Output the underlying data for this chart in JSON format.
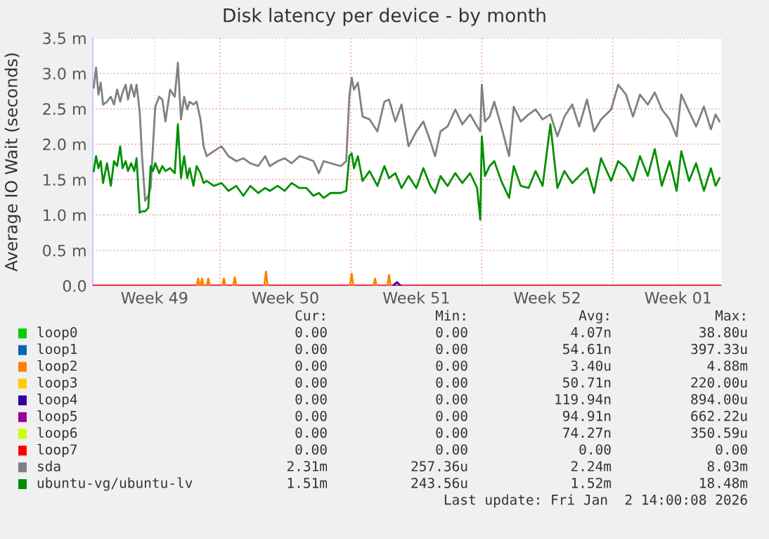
{
  "chart_data": {
    "type": "line",
    "title": "Disk latency per device - by month",
    "ylabel": "Average IO Wait (seconds)",
    "xlim": [
      "2025-12-01T04:48",
      "2026-01-03T19:12"
    ],
    "xticks": [
      {
        "value": "2025-12-04T12:00",
        "label": "Week 49"
      },
      {
        "value": "2025-12-08T00:00",
        "label": null
      },
      {
        "value": "2025-12-11T12:00",
        "label": "Week 50"
      },
      {
        "value": "2025-12-15T00:00",
        "label": null
      },
      {
        "value": "2025-12-18T12:00",
        "label": "Week 51"
      },
      {
        "value": "2025-12-22T00:00",
        "label": null
      },
      {
        "value": "2025-12-25T12:00",
        "label": "Week 52"
      },
      {
        "value": "2025-12-29T00:00",
        "label": null
      },
      {
        "value": "2026-01-01T12:00",
        "label": "Week 01"
      }
    ],
    "ylim": [
      0,
      3.5
    ],
    "yticks": [
      {
        "value": 0,
        "label": "0.0"
      },
      {
        "value": 0.5,
        "label": "0.5 m"
      },
      {
        "value": 1.0,
        "label": "1.0 m"
      },
      {
        "value": 1.5,
        "label": "1.5 m"
      },
      {
        "value": 2.0,
        "label": "2.0 m"
      },
      {
        "value": 2.5,
        "label": "2.5 m"
      },
      {
        "value": 3.0,
        "label": "3.0 m"
      },
      {
        "value": 3.5,
        "label": "3.5 m"
      }
    ],
    "grid": true,
    "legend": "bottom",
    "marker": "none",
    "line_style": "solid",
    "series": [
      {
        "name": "loop0",
        "color": "#00cc00"
      },
      {
        "name": "loop1",
        "color": "#0066b3"
      },
      {
        "name": "loop2",
        "color": "#ff8000",
        "x": [
          "2025-12-06T18:00",
          "2025-12-06T20:00",
          "2025-12-06T22:00",
          null,
          "2025-12-06T23:00",
          "2025-12-07T01:00",
          "2025-12-07T03:00",
          null,
          "2025-12-07T07:00",
          "2025-12-07T09:00",
          "2025-12-07T11:00",
          null,
          "2025-12-08T03:00",
          "2025-12-08T05:00",
          "2025-12-08T07:00",
          null,
          "2025-12-08T17:00",
          "2025-12-08T19:00",
          "2025-12-08T21:00",
          null,
          "2025-12-10T09:00",
          "2025-12-10T11:00",
          "2025-12-10T13:00",
          null,
          "2025-12-14T23:00",
          "2025-12-15T01:00",
          "2025-12-15T03:00",
          null,
          "2025-12-16T05:00",
          "2025-12-16T07:00",
          "2025-12-16T09:00",
          null,
          "2025-12-16T23:00",
          "2025-12-17T01:00",
          "2025-12-17T03:00"
        ],
        "values": [
          0,
          0.1,
          0,
          null,
          0,
          0.1,
          0,
          null,
          0,
          0.1,
          0,
          null,
          0,
          0.1,
          0,
          null,
          0,
          0.12,
          0,
          null,
          0,
          0.2,
          0,
          null,
          0,
          0.17,
          0,
          null,
          0,
          0.1,
          0,
          null,
          0,
          0.15,
          0
        ]
      },
      {
        "name": "loop3",
        "color": "#ffcc00"
      },
      {
        "name": "loop4",
        "color": "#330099",
        "x": [
          "2025-12-17T06:00",
          "2025-12-17T11:00",
          "2025-12-17T16:00"
        ],
        "values": [
          0,
          0.05,
          0
        ]
      },
      {
        "name": "loop5",
        "color": "#990099"
      },
      {
        "name": "loop6",
        "color": "#ccff00"
      },
      {
        "name": "loop7",
        "color": "#ff0000",
        "x": [
          "2025-12-01T04:48",
          "2026-01-03T19:12"
        ],
        "values": [
          0,
          0
        ]
      },
      {
        "name": "sda",
        "color": "#808080",
        "x": [
          "2025-12-01T06:00",
          "2025-12-01T09:00",
          "2025-12-01T12:00",
          "2025-12-01T15:00",
          "2025-12-01T18:00",
          "2025-12-01T23:00",
          "2025-12-02T04:00",
          "2025-12-02T08:00",
          "2025-12-02T12:00",
          "2025-12-02T16:00",
          "2025-12-02T19:00",
          "2025-12-02T23:00",
          "2025-12-03T02:00",
          "2025-12-03T06:00",
          "2025-12-03T10:00",
          "2025-12-03T13:00",
          "2025-12-03T17:00",
          "2025-12-03T20:00",
          "2025-12-04T00:00",
          "2025-12-04T04:00",
          "2025-12-04T07:00",
          "2025-12-04T10:00",
          "2025-12-04T13:00",
          "2025-12-04T18:00",
          "2025-12-04T22:00",
          "2025-12-05T02:00",
          "2025-12-05T08:00",
          "2025-12-05T14:00",
          "2025-12-05T18:00",
          "2025-12-05T22:00",
          "2025-12-06T02:00",
          "2025-12-06T06:00",
          "2025-12-06T09:00",
          "2025-12-06T14:00",
          "2025-12-06T18:00",
          "2025-12-06T23:00",
          "2025-12-07T03:00",
          "2025-12-07T07:00",
          "2025-12-07T16:00",
          "2025-12-08T02:00",
          "2025-12-08T11:00",
          "2025-12-08T21:00",
          "2025-12-09T06:00",
          "2025-12-09T15:00",
          "2025-12-10T01:00",
          "2025-12-10T10:00",
          "2025-12-10T16:00",
          "2025-12-11T02:00",
          "2025-12-11T11:00",
          "2025-12-11T20:00",
          "2025-12-12T06:00",
          "2025-12-12T15:00",
          "2025-12-13T00:00",
          "2025-12-13T07:00",
          "2025-12-13T13:00",
          "2025-12-13T22:00",
          "2025-12-14T11:00",
          "2025-12-14T18:00",
          "2025-12-14T22:00",
          "2025-12-15T01:00",
          "2025-12-15T04:00",
          "2025-12-15T09:00",
          "2025-12-15T15:00",
          "2025-12-16T00:00",
          "2025-12-16T10:00",
          "2025-12-16T19:00",
          "2025-12-17T01:00",
          "2025-12-17T09:00",
          "2025-12-17T17:00",
          "2025-12-18T02:00",
          "2025-12-18T12:00",
          "2025-12-18T21:00",
          "2025-12-19T06:00",
          "2025-12-19T12:00",
          "2025-12-19T19:00",
          "2025-12-20T04:00",
          "2025-12-20T14:00",
          "2025-12-20T23:00",
          "2025-12-21T09:00",
          "2025-12-21T18:00",
          "2025-12-21T22:00",
          "2025-12-22T00:00",
          "2025-12-22T04:00",
          "2025-12-22T10:00",
          "2025-12-22T16:00",
          "2025-12-23T01:00",
          "2025-12-23T11:00",
          "2025-12-23T17:00",
          "2025-12-24T02:00",
          "2025-12-24T12:00",
          "2025-12-24T21:00",
          "2025-12-25T06:00",
          "2025-12-25T16:00",
          "2025-12-26T01:00",
          "2025-12-26T10:00",
          "2025-12-26T20:00",
          "2025-12-27T05:00",
          "2025-12-27T15:00",
          "2025-12-28T00:00",
          "2025-12-28T09:00",
          "2025-12-28T22:00",
          "2025-12-29T07:00",
          "2025-12-29T17:00",
          "2025-12-30T02:00",
          "2025-12-30T11:00",
          "2025-12-30T21:00",
          "2025-12-31T06:00",
          "2025-12-31T15:00",
          "2026-01-01T01:00",
          "2026-01-01T10:00",
          "2026-01-01T16:00",
          "2026-01-02T02:00",
          "2026-01-02T11:00",
          "2026-01-02T21:00",
          "2026-01-03T06:00",
          "2026-01-03T12:00",
          "2026-01-03T17:00"
        ],
        "values": [
          2.8,
          3.08,
          2.7,
          2.87,
          2.56,
          2.6,
          2.67,
          2.56,
          2.77,
          2.6,
          2.73,
          2.84,
          2.63,
          2.84,
          2.67,
          2.84,
          2.46,
          1.83,
          1.2,
          1.27,
          1.38,
          1.97,
          2.53,
          2.67,
          2.63,
          2.32,
          2.77,
          2.67,
          3.15,
          2.35,
          2.67,
          2.49,
          2.6,
          2.56,
          2.6,
          2.35,
          1.97,
          1.83,
          1.9,
          1.97,
          1.83,
          1.76,
          1.8,
          1.73,
          1.69,
          1.83,
          1.69,
          1.76,
          1.8,
          1.73,
          1.83,
          1.8,
          1.76,
          1.59,
          1.76,
          1.73,
          1.69,
          1.76,
          2.67,
          2.94,
          2.77,
          2.87,
          2.39,
          2.35,
          2.18,
          2.6,
          2.63,
          2.32,
          2.56,
          1.97,
          2.18,
          2.32,
          2.04,
          1.83,
          2.18,
          2.25,
          2.49,
          2.28,
          2.42,
          2.25,
          2.18,
          2.84,
          2.32,
          2.39,
          2.6,
          2.25,
          1.83,
          2.53,
          2.32,
          2.42,
          2.49,
          2.35,
          2.42,
          2.11,
          2.39,
          2.56,
          2.25,
          2.63,
          2.18,
          2.35,
          2.49,
          2.84,
          2.7,
          2.39,
          2.7,
          2.56,
          2.73,
          2.49,
          2.35,
          2.11,
          2.7,
          2.46,
          2.25,
          2.53,
          2.21,
          2.42,
          2.32
        ]
      },
      {
        "name": "ubuntu-vg/ubuntu-lv",
        "color": "#008f00",
        "x": [
          "2025-12-01T06:00",
          "2025-12-01T09:00",
          "2025-12-01T12:00",
          "2025-12-01T15:00",
          "2025-12-01T18:00",
          "2025-12-01T23:00",
          "2025-12-02T04:00",
          "2025-12-02T08:00",
          "2025-12-02T12:00",
          "2025-12-02T16:00",
          "2025-12-02T19:00",
          "2025-12-02T23:00",
          "2025-12-03T02:00",
          "2025-12-03T06:00",
          "2025-12-03T10:00",
          "2025-12-03T13:00",
          "2025-12-03T17:00",
          "2025-12-03T20:00",
          "2025-12-04T00:00",
          "2025-12-04T04:00",
          "2025-12-04T07:00",
          "2025-12-04T10:00",
          "2025-12-04T13:00",
          "2025-12-04T18:00",
          "2025-12-04T22:00",
          "2025-12-05T02:00",
          "2025-12-05T08:00",
          "2025-12-05T14:00",
          "2025-12-05T18:00",
          "2025-12-05T22:00",
          "2025-12-06T02:00",
          "2025-12-06T06:00",
          "2025-12-06T09:00",
          "2025-12-06T14:00",
          "2025-12-06T18:00",
          "2025-12-06T23:00",
          "2025-12-07T03:00",
          "2025-12-07T07:00",
          "2025-12-07T16:00",
          "2025-12-08T02:00",
          "2025-12-08T11:00",
          "2025-12-08T21:00",
          "2025-12-09T06:00",
          "2025-12-09T15:00",
          "2025-12-10T01:00",
          "2025-12-10T10:00",
          "2025-12-10T16:00",
          "2025-12-11T02:00",
          "2025-12-11T11:00",
          "2025-12-11T20:00",
          "2025-12-12T06:00",
          "2025-12-12T15:00",
          "2025-12-13T00:00",
          "2025-12-13T07:00",
          "2025-12-13T13:00",
          "2025-12-13T22:00",
          "2025-12-14T11:00",
          "2025-12-14T18:00",
          "2025-12-14T22:00",
          "2025-12-15T01:00",
          "2025-12-15T04:00",
          "2025-12-15T09:00",
          "2025-12-15T15:00",
          "2025-12-16T00:00",
          "2025-12-16T10:00",
          "2025-12-16T19:00",
          "2025-12-17T01:00",
          "2025-12-17T09:00",
          "2025-12-17T17:00",
          "2025-12-18T02:00",
          "2025-12-18T12:00",
          "2025-12-18T21:00",
          "2025-12-19T06:00",
          "2025-12-19T12:00",
          "2025-12-19T19:00",
          "2025-12-20T04:00",
          "2025-12-20T14:00",
          "2025-12-20T23:00",
          "2025-12-21T09:00",
          "2025-12-21T18:00",
          "2025-12-21T22:00",
          "2025-12-22T00:00",
          "2025-12-22T04:00",
          "2025-12-22T10:00",
          "2025-12-22T16:00",
          "2025-12-23T01:00",
          "2025-12-23T11:00",
          "2025-12-23T17:00",
          "2025-12-24T02:00",
          "2025-12-24T12:00",
          "2025-12-24T21:00",
          "2025-12-25T06:00",
          "2025-12-25T16:00",
          "2025-12-26T01:00",
          "2025-12-26T10:00",
          "2025-12-26T20:00",
          "2025-12-27T05:00",
          "2025-12-27T15:00",
          "2025-12-28T00:00",
          "2025-12-28T09:00",
          "2025-12-28T22:00",
          "2025-12-29T07:00",
          "2025-12-29T17:00",
          "2025-12-30T02:00",
          "2025-12-30T11:00",
          "2025-12-30T21:00",
          "2025-12-31T06:00",
          "2025-12-31T15:00",
          "2026-01-01T01:00",
          "2026-01-01T10:00",
          "2026-01-01T16:00",
          "2026-01-02T02:00",
          "2026-01-02T11:00",
          "2026-01-02T21:00",
          "2026-01-03T06:00",
          "2026-01-03T12:00",
          "2026-01-03T17:00"
        ],
        "values": [
          1.62,
          1.83,
          1.66,
          1.76,
          1.45,
          1.73,
          1.41,
          1.76,
          1.69,
          1.97,
          1.66,
          1.76,
          1.62,
          1.73,
          1.62,
          1.8,
          1.03,
          1.05,
          1.05,
          1.1,
          1.69,
          1.62,
          1.73,
          1.59,
          1.69,
          1.62,
          1.66,
          1.59,
          2.28,
          1.52,
          1.83,
          1.52,
          1.66,
          1.41,
          1.69,
          1.59,
          1.45,
          1.48,
          1.41,
          1.45,
          1.34,
          1.41,
          1.27,
          1.41,
          1.31,
          1.38,
          1.34,
          1.41,
          1.34,
          1.45,
          1.38,
          1.38,
          1.27,
          1.31,
          1.24,
          1.31,
          1.31,
          1.34,
          1.83,
          1.87,
          1.66,
          1.83,
          1.48,
          1.62,
          1.41,
          1.69,
          1.52,
          1.59,
          1.38,
          1.55,
          1.38,
          1.66,
          1.41,
          1.31,
          1.55,
          1.41,
          1.59,
          1.45,
          1.59,
          1.38,
          0.93,
          2.11,
          1.55,
          1.69,
          1.76,
          1.48,
          1.24,
          1.69,
          1.41,
          1.38,
          1.62,
          1.41,
          2.28,
          1.38,
          1.62,
          1.45,
          1.55,
          1.66,
          1.31,
          1.8,
          1.48,
          1.76,
          1.66,
          1.48,
          1.83,
          1.55,
          1.93,
          1.41,
          1.76,
          1.34,
          1.9,
          1.48,
          1.73,
          1.34,
          1.66,
          1.41,
          1.52
        ]
      }
    ],
    "annotations": [
      "Cur:",
      "Min:",
      "Avg:",
      "Max:",
      "0.00",
      "0.00",
      "4.07n",
      "38.80u",
      "0.00",
      "0.00",
      "54.61n",
      "397.33u",
      "0.00",
      "0.00",
      "3.40u",
      "4.88m",
      "0.00",
      "0.00",
      "50.71n",
      "220.00u",
      "0.00",
      "0.00",
      "119.94n",
      "894.00u",
      "0.00",
      "0.00",
      "94.91n",
      "662.22u",
      "0.00",
      "0.00",
      "74.27n",
      "350.59u",
      "0.00",
      "0.00",
      "0.00",
      "0.00",
      "2.31m",
      "257.36u",
      "2.24m",
      "8.03m",
      "1.51m",
      "243.56u",
      "1.52m",
      "18.48m",
      "Last update: Fri Jan  2 14:00:08 2026"
    ]
  }
}
